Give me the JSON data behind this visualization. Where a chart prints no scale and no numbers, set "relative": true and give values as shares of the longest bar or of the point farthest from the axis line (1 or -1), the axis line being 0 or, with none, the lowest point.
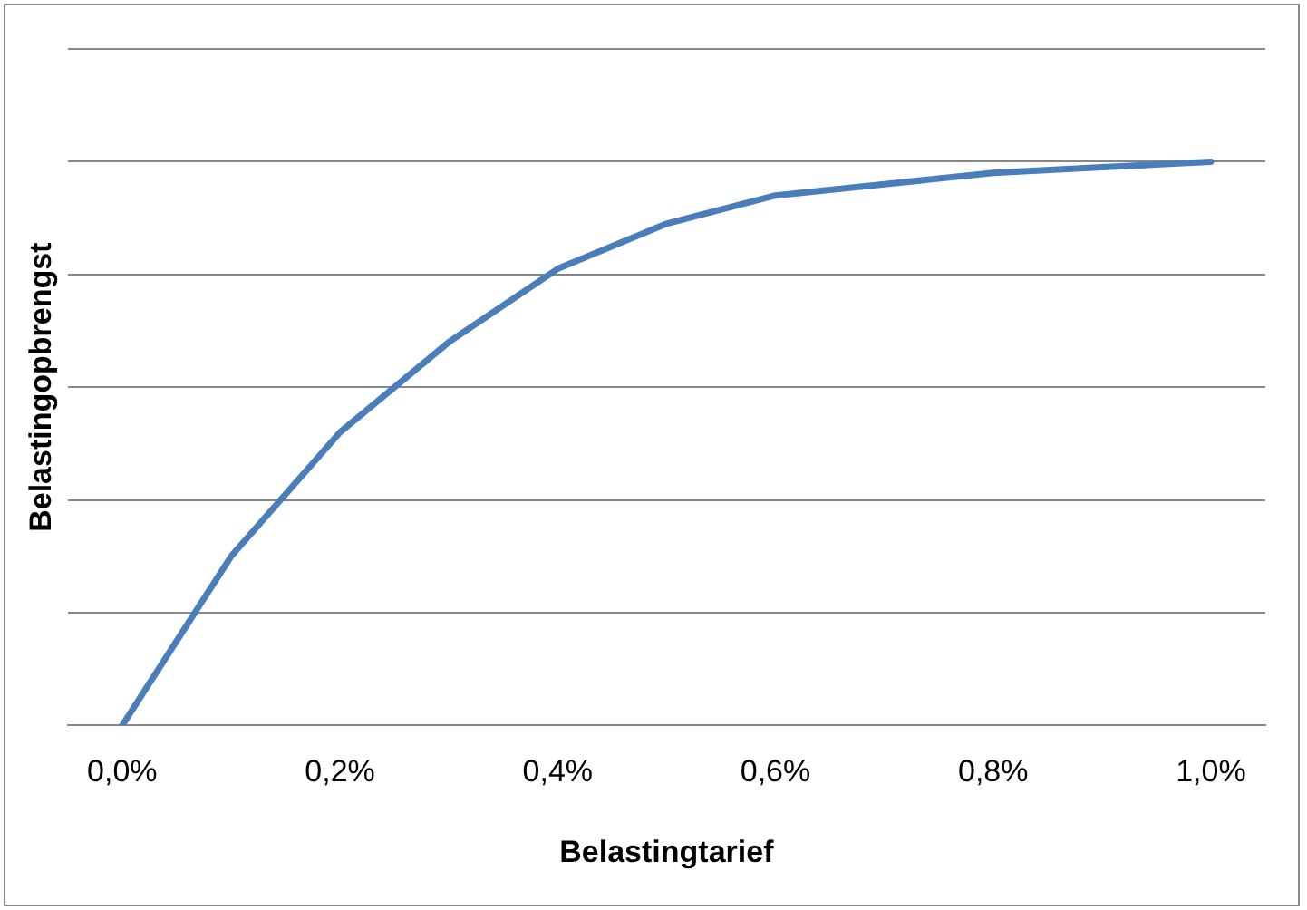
{
  "chart_data": {
    "type": "line",
    "xlabel": "Belastingtarief",
    "ylabel": "Belastingopbrengst",
    "categories": [
      "0,0%",
      null,
      "0,2%",
      null,
      "0,4%",
      null,
      "0,6%",
      null,
      "0,8%",
      null,
      "1,0%"
    ],
    "relative": true,
    "series": [
      {
        "color": "#4a7ebb",
        "values": [
          0,
          0.3,
          0.52,
          0.68,
          0.81,
          0.89,
          0.94,
          0.96,
          0.98,
          0.99,
          1
        ]
      }
    ],
    "grid": "y",
    "legend": false,
    "marker": "none",
    "line_style": "solid"
  }
}
